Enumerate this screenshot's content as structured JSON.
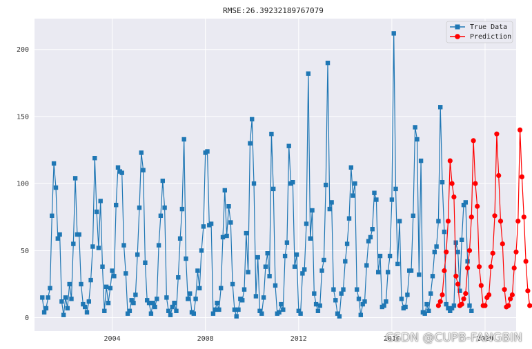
{
  "watermark": "CSDN @CUPB-FANGBIN",
  "chart_data": {
    "type": "line",
    "title": "RMSE:26.39232189767079",
    "xlabel": "",
    "ylabel": "",
    "grid": true,
    "legend_position": "top-right",
    "x_ticks": [
      "2004",
      "2008",
      "2012",
      "2016",
      "2020"
    ],
    "y_ticks": [
      0,
      50,
      100,
      150,
      200
    ],
    "xlim": [
      "2000-09",
      "2021-05"
    ],
    "ylim": [
      -10,
      223
    ],
    "colors": {
      "true_data": "#1f77b4",
      "prediction": "#ff0000",
      "background": "#eaeaf2",
      "grid": "#ffffff"
    },
    "x_start": "2001-01",
    "x_step": "month",
    "series": [
      {
        "name": "True Data",
        "marker": "square",
        "values": [
          15,
          4,
          7,
          15,
          22,
          76,
          115,
          97,
          59,
          62,
          12,
          2,
          15,
          7,
          25,
          14,
          55,
          104,
          62,
          62,
          25,
          10,
          8,
          4,
          12,
          28,
          53,
          119,
          79,
          52,
          87,
          38,
          5,
          23,
          11,
          22,
          35,
          31,
          84,
          112,
          109,
          108,
          54,
          33,
          3,
          5,
          13,
          11,
          17,
          47,
          82,
          123,
          110,
          41,
          13,
          11,
          3,
          11,
          8,
          14,
          54,
          76,
          102,
          82,
          15,
          5,
          2,
          8,
          11,
          5,
          30,
          59,
          81,
          133,
          44,
          14,
          18,
          4,
          3,
          14,
          35,
          22,
          50,
          68,
          123,
          124,
          69,
          70,
          3,
          6,
          11,
          6,
          22,
          60,
          95,
          61,
          83,
          71,
          25,
          6,
          1,
          6,
          14,
          13,
          21,
          63,
          34,
          130,
          148,
          100,
          16,
          45,
          5,
          3,
          15,
          38,
          48,
          31,
          137,
          96,
          24,
          3,
          4,
          10,
          6,
          46,
          56,
          128,
          100,
          101,
          38,
          47,
          5,
          3,
          33,
          36,
          70,
          182,
          59,
          80,
          18,
          10,
          5,
          9,
          35,
          43,
          99,
          190,
          81,
          86,
          21,
          13,
          3,
          1,
          18,
          21,
          42,
          55,
          74,
          112,
          91,
          100,
          21,
          14,
          2,
          10,
          12,
          39,
          57,
          60,
          66,
          93,
          88,
          34,
          46,
          8,
          9,
          12,
          34,
          46,
          88,
          212,
          96,
          40,
          72,
          14,
          7,
          8,
          17,
          35,
          35,
          76,
          142,
          133,
          32,
          117,
          4,
          3,
          10,
          5,
          18,
          31,
          49,
          53,
          72,
          157,
          101,
          64,
          10,
          7,
          5,
          7,
          9,
          56,
          49,
          20,
          58,
          84,
          86,
          42,
          9,
          5
        ]
      },
      {
        "name": "Prediction",
        "marker": "circle",
        "start": "2018-01",
        "values": [
          9,
          12,
          17,
          35,
          49,
          72,
          117,
          100,
          90,
          31,
          25,
          9,
          10,
          14,
          18,
          37,
          50,
          75,
          132,
          100,
          83,
          38,
          24,
          9,
          9,
          15,
          17,
          38,
          48,
          76,
          137,
          106,
          72,
          55,
          21,
          8,
          9,
          14,
          17,
          37,
          49,
          72,
          140,
          105,
          75,
          42,
          20,
          9
        ]
      }
    ]
  }
}
